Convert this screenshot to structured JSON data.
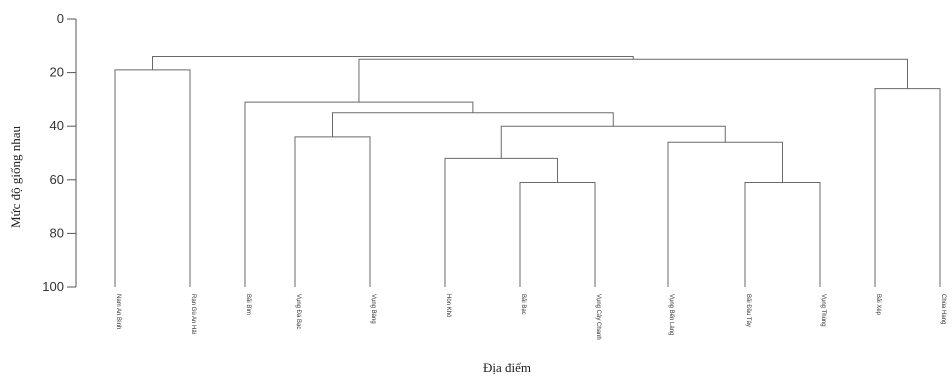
{
  "chart_data": {
    "type": "dendrogram",
    "ylabel": "Mức độ giống nhau",
    "xlabel": "Địa điểm",
    "ylim": [
      0,
      100
    ],
    "y_inverted": true,
    "yticks": [
      0,
      20,
      40,
      60,
      80,
      100
    ],
    "leaves": [
      "Nam An Bình",
      "Rạn Gù An Hải",
      "Bãi Bìm",
      "Vụng Đá Bạc",
      "Vụng Bàng",
      "Hòn Khô",
      "Bãi Bạc",
      "Vụng Cây Chanh",
      "Vụng Bến Làng",
      "Bãi Đầu Tây",
      "Vụng Thùng",
      "Bãi Xép",
      "Chùa Hang"
    ],
    "merges": [
      {
        "left": "Nam An Bình",
        "right": "Rạn Gù An Hải",
        "similarity": 19
      },
      {
        "left": "Hòn Khô",
        "right": "Bãi Bạc + Vụng Cây Chanh",
        "similarity": 52
      },
      {
        "left": "Bãi Bạc",
        "right": "Vụng Cây Chanh",
        "similarity": 61
      },
      {
        "left": "Vụng Đá Bạc",
        "right": "Vụng Bàng",
        "similarity": 44
      },
      {
        "left": "Bãi Đầu Tây",
        "right": "Vụng Thùng",
        "similarity": 61
      },
      {
        "left": "Vụng Bến Làng",
        "right": "Bãi Đầu Tây + Vụng Thùng",
        "similarity": 46
      },
      {
        "left": "Hòn Khô group",
        "right": "Vụng Bến Làng group",
        "similarity": 40
      },
      {
        "left": "Vụng Đá Bạc group",
        "right": "Hòn Khô + Vụng Bến Làng groups",
        "similarity": 35
      },
      {
        "left": "Bãi Bìm",
        "right": "Vụng Đá Bạc ... Vụng Thùng",
        "similarity": 31
      },
      {
        "left": "Bãi Xép",
        "right": "Chùa Hang",
        "similarity": 26
      },
      {
        "left": "Bãi Bìm ... Vụng Thùng",
        "right": "Bãi Xép + Chùa Hang",
        "similarity": 15
      },
      {
        "left": "Nam An Bình + Rạn Gù An Hải",
        "right": "all remaining sites",
        "similarity": 14
      }
    ]
  }
}
